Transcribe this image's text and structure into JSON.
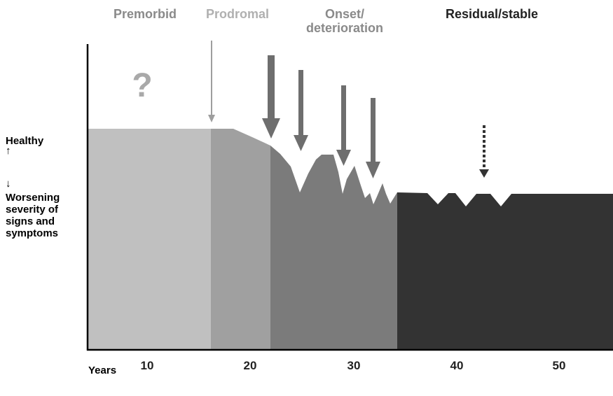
{
  "phases": {
    "premorbid": "Premorbid",
    "prodromal": "Prodromal",
    "onset": "Onset/",
    "onset_line2": "deterioration",
    "residual": "Residual/stable"
  },
  "unknown_mark": "?",
  "y_axis": {
    "healthy": "Healthy",
    "arrow_up": "↑",
    "arrow_down": "↓",
    "worsening": [
      "Worsening",
      "severity of",
      "signs and",
      "symptoms"
    ]
  },
  "x_axis": {
    "title": "Years",
    "ticks": [
      "10",
      "20",
      "30",
      "40",
      "50"
    ]
  },
  "colors": {
    "premorbid": "#c0c0c0",
    "prodromal": "#a0a0a0",
    "onset": "#7b7b7b",
    "residual": "#333333",
    "prodromal_label": "#b0b0b0",
    "label_grey": "#8a8a8a"
  }
}
